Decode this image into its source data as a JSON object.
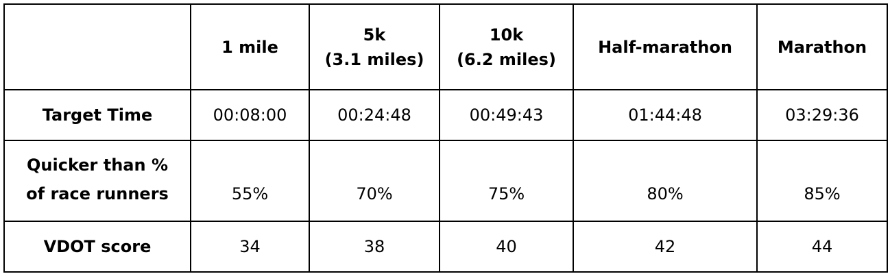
{
  "table": {
    "columns": [
      [
        "1 mile"
      ],
      [
        "5k",
        "(3.1 miles)"
      ],
      [
        "10k",
        "(6.2 miles)"
      ],
      [
        "Half-marathon"
      ],
      [
        "Marathon"
      ]
    ],
    "rows": [
      {
        "label": [
          "Target Time"
        ],
        "values": [
          "00:08:00",
          "00:24:48",
          "00:49:43",
          "01:44:48",
          "03:29:36"
        ]
      },
      {
        "label": [
          "Quicker than %",
          "of race runners"
        ],
        "values": [
          "55%",
          "70%",
          "75%",
          "80%",
          "85%"
        ]
      },
      {
        "label": [
          "VDOT score"
        ],
        "values": [
          34,
          38,
          40,
          42,
          44
        ]
      }
    ]
  }
}
